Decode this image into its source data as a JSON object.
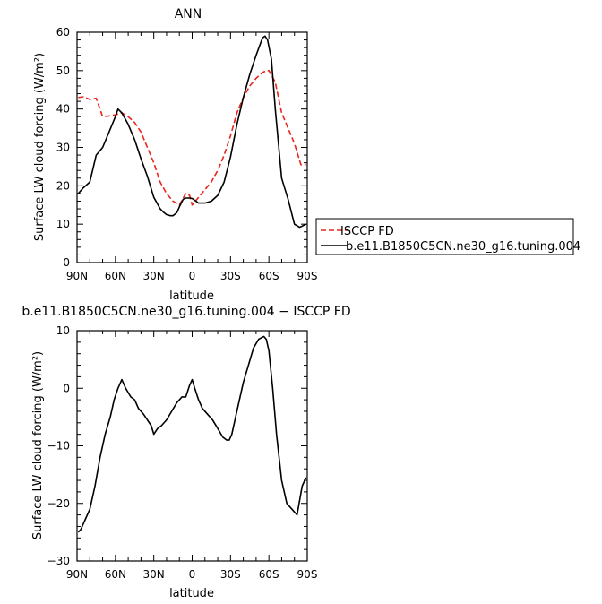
{
  "chart_data": [
    {
      "type": "line",
      "title": "ANN",
      "xlabel": "latitude",
      "ylabel": "Surface LW cloud forcing (W/m²)",
      "xlim": [
        90,
        -90
      ],
      "ylim": [
        0,
        60
      ],
      "xticks": [
        90,
        60,
        30,
        0,
        -30,
        -60,
        -90
      ],
      "xtick_labels": [
        "90N",
        "60N",
        "30N",
        "0",
        "30S",
        "60S",
        "90S"
      ],
      "yticks": [
        0,
        10,
        20,
        30,
        40,
        50,
        60
      ],
      "ytick_labels": [
        "0",
        "10",
        "20",
        "30",
        "40",
        "50",
        "60"
      ],
      "grid": false,
      "legend_position": "right",
      "series": [
        {
          "name": "ISCCP FD",
          "color": "#e8261c",
          "dash": "dashed",
          "x": [
            89,
            85,
            80,
            75,
            70,
            65,
            60,
            55,
            50,
            45,
            40,
            35,
            30,
            25,
            20,
            15,
            10,
            5,
            2,
            0,
            -5,
            -10,
            -15,
            -20,
            -25,
            -30,
            -35,
            -40,
            -45,
            -50,
            -55,
            -58,
            -60,
            -65,
            -70,
            -75,
            -80,
            -85,
            -89
          ],
          "y": [
            43,
            43.2,
            42.5,
            42.8,
            38,
            38.2,
            38.5,
            39,
            38,
            36.5,
            34,
            30,
            26,
            21,
            18,
            16,
            15,
            18,
            17.5,
            15,
            17,
            19,
            21,
            24,
            28,
            33,
            39,
            43,
            46,
            48,
            49.5,
            50,
            50,
            47,
            39,
            35,
            31,
            25.5,
            25.5
          ]
        },
        {
          "name": "b.e11.B1850C5CN.ne30_g16.tuning.004",
          "color": "#000000",
          "dash": "solid",
          "x": [
            89,
            85,
            80,
            75,
            70,
            65,
            60,
            58,
            55,
            50,
            45,
            40,
            35,
            30,
            25,
            22,
            20,
            17,
            15,
            12,
            10,
            7,
            5,
            2,
            0,
            -3,
            -5,
            -10,
            -15,
            -20,
            -25,
            -30,
            -35,
            -40,
            -45,
            -50,
            -55,
            -57,
            -59,
            -62,
            -65,
            -70,
            -75,
            -80,
            -84,
            -86,
            -89
          ],
          "y": [
            18,
            19.5,
            21,
            28,
            30,
            34,
            38,
            40,
            39,
            36,
            32,
            27,
            22.5,
            17,
            14,
            13,
            12.5,
            12.2,
            12.2,
            13,
            14.5,
            16.5,
            16.8,
            16.8,
            16.7,
            16,
            15.5,
            15.5,
            16,
            17.5,
            21,
            27.5,
            36,
            43,
            49,
            54,
            58.5,
            59,
            58,
            53,
            40,
            22,
            16.5,
            10,
            9.2,
            9.5,
            10
          ]
        }
      ]
    },
    {
      "type": "line",
      "title": "b.e11.B1850C5CN.ne30_g16.tuning.004 − ISCCP FD",
      "xlabel": "latitude",
      "ylabel": "Surface LW cloud forcing (W/m²)",
      "xlim": [
        90,
        -90
      ],
      "ylim": [
        -30,
        10
      ],
      "xticks": [
        90,
        60,
        30,
        0,
        -30,
        -60,
        -90
      ],
      "xtick_labels": [
        "90N",
        "60N",
        "30N",
        "0",
        "30S",
        "60S",
        "90S"
      ],
      "yticks": [
        -30,
        -20,
        -10,
        0,
        10
      ],
      "ytick_labels": [
        "−30",
        "−20",
        "−10",
        "0",
        "10"
      ],
      "grid": false,
      "series": [
        {
          "color": "#000000",
          "dash": "solid",
          "x": [
            89,
            87,
            84,
            80,
            76,
            72,
            68,
            64,
            61,
            58,
            55,
            52,
            48,
            45,
            42,
            38,
            35,
            32,
            30,
            27,
            24,
            20,
            16,
            12,
            8,
            5,
            2,
            0,
            -2,
            -5,
            -8,
            -12,
            -16,
            -20,
            -24,
            -27,
            -29,
            -31,
            -34,
            -37,
            -40,
            -44,
            -48,
            -52,
            -56,
            -58,
            -60,
            -63,
            -66,
            -70,
            -74,
            -78,
            -82,
            -86,
            -89
          ],
          "y": [
            -25,
            -24.5,
            -23,
            -21,
            -17,
            -12,
            -8,
            -5,
            -2,
            0,
            1.5,
            0,
            -1.5,
            -2,
            -3.5,
            -4.5,
            -5.5,
            -6.5,
            -8,
            -7,
            -6.5,
            -5.5,
            -4,
            -2.5,
            -1.5,
            -1.5,
            0.5,
            1.5,
            0,
            -2,
            -3.5,
            -4.5,
            -5.5,
            -7,
            -8.5,
            -9,
            -9,
            -8,
            -5,
            -2,
            1,
            4,
            7,
            8.5,
            9,
            8.5,
            6.5,
            0,
            -8,
            -16,
            -20,
            -21,
            -22,
            -17,
            -15.5
          ]
        }
      ]
    }
  ]
}
